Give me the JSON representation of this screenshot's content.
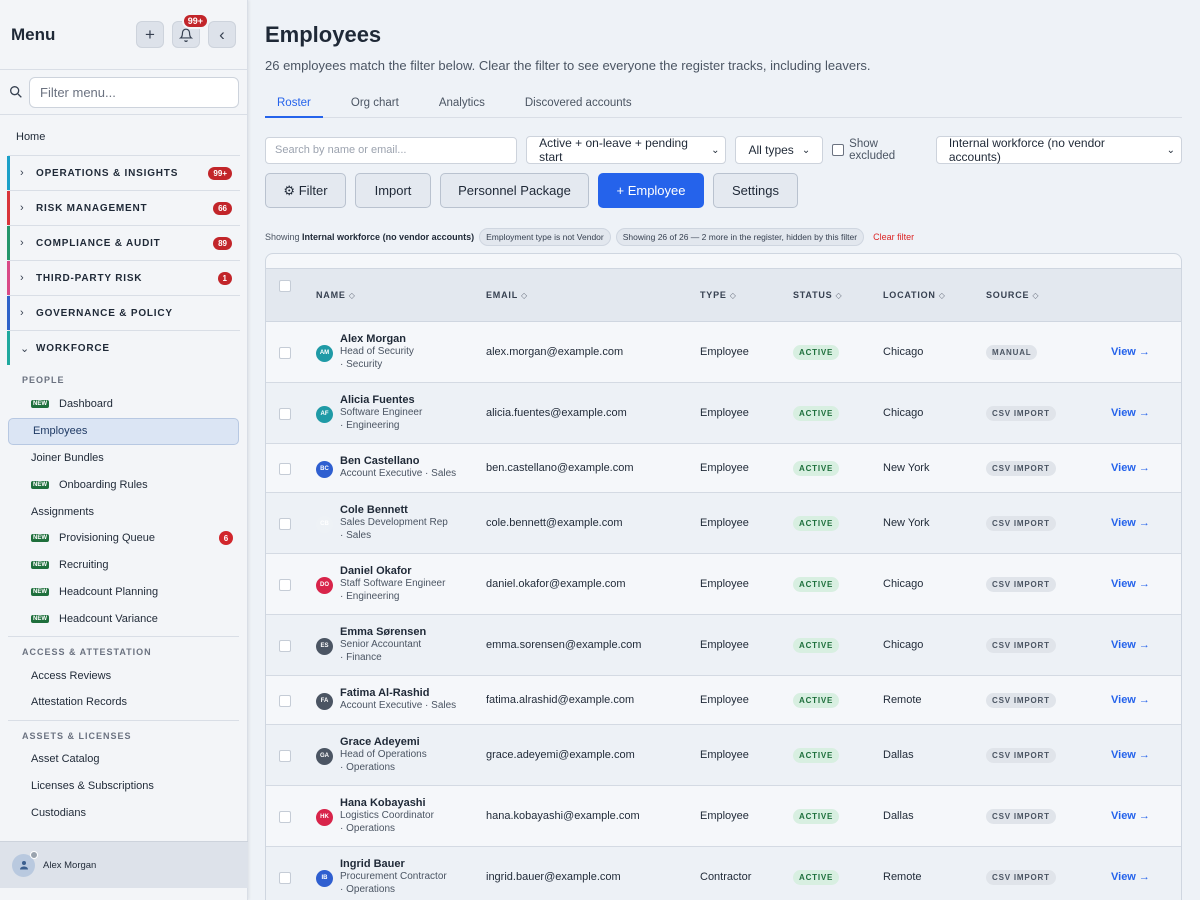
{
  "sidebar": {
    "title": "Menu",
    "notif_badge": "99+",
    "search_placeholder": "Filter menu...",
    "home": "Home",
    "groups": [
      {
        "label": "OPERATIONS & INSIGHTS",
        "count": "99+",
        "color": "#1ba0c8"
      },
      {
        "label": "RISK MANAGEMENT",
        "count": "66",
        "color": "#d9343a"
      },
      {
        "label": "COMPLIANCE & AUDIT",
        "count": "89",
        "color": "#23956b"
      },
      {
        "label": "THIRD-PARTY RISK",
        "count": "1",
        "color": "#d94a87"
      },
      {
        "label": "GOVERNANCE & POLICY",
        "count": "",
        "color": "#2f63c9"
      },
      {
        "label": "WORKFORCE",
        "count": "",
        "color": "#1fa89e"
      }
    ],
    "section_people": "PEOPLE",
    "people_items": [
      {
        "label": "Dashboard",
        "new": "NEW",
        "count": ""
      },
      {
        "label": "Employees",
        "new": "",
        "count": "",
        "active": true
      },
      {
        "label": "Joiner Bundles",
        "new": "",
        "count": ""
      },
      {
        "label": "Onboarding Rules",
        "new": "NEW",
        "count": ""
      },
      {
        "label": "Assignments",
        "new": "",
        "count": ""
      },
      {
        "label": "Provisioning Queue",
        "new": "NEW",
        "count": "6"
      },
      {
        "label": "Recruiting",
        "new": "NEW",
        "count": ""
      },
      {
        "label": "Headcount Planning",
        "new": "NEW",
        "count": ""
      },
      {
        "label": "Headcount Variance",
        "new": "NEW",
        "count": ""
      }
    ],
    "section_access": "ACCESS & ATTESTATION",
    "access_items": [
      "Access Reviews",
      "Attestation Records"
    ],
    "section_assets": "ASSETS & LICENSES",
    "assets_items": [
      "Asset Catalog",
      "Licenses & Subscriptions",
      "Custodians"
    ],
    "user_name": "Alex Morgan"
  },
  "main": {
    "title": "Employees",
    "subtitle": "26 employees match the filter below. Clear the filter to see everyone the register tracks, including leavers.",
    "tabs": [
      "Roster",
      "Org chart",
      "Analytics",
      "Discovered accounts"
    ],
    "search_placeholder": "Search by name or email...",
    "status_select": "Active + on-leave + pending start",
    "type_select": "All types",
    "show_excluded": "Show excluded",
    "scope_select": "Internal workforce (no vendor accounts)",
    "buttons": {
      "filter": "⚙ Filter",
      "import": "Import",
      "package": "Personnel Package",
      "add": "+ Employee",
      "settings": "Settings"
    },
    "showing_prefix": "Showing",
    "showing_scope": "Internal workforce (no vendor accounts)",
    "chip_type": "Employment type is not Vendor",
    "chip_count": "Showing 26 of 26 — 2 more in the register, hidden by this filter",
    "clear_filter": "Clear filter"
  },
  "table": {
    "columns": [
      "NAME",
      "EMAIL",
      "TYPE",
      "STATUS",
      "LOCATION",
      "SOURCE"
    ],
    "sort_glyph": "◇",
    "view_label": "View →",
    "rows": [
      {
        "initials": "AM",
        "color": "#1f9aa6",
        "name": "Alex Morgan",
        "title1": "Head of Security",
        "title2": "· Security",
        "email": "alex.morgan@example.com",
        "type": "Employee",
        "status": "ACTIVE",
        "location": "Chicago",
        "source": "MANUAL"
      },
      {
        "initials": "AF",
        "color": "#1f9aa6",
        "name": "Alicia Fuentes",
        "title1": "Software Engineer",
        "title2": "· Engineering",
        "email": "alicia.fuentes@example.com",
        "type": "Employee",
        "status": "ACTIVE",
        "location": "Chicago",
        "source": "CSV IMPORT"
      },
      {
        "initials": "BC",
        "color": "#2f5fd0",
        "name": "Ben Castellano",
        "title1": "Account Executive · Sales",
        "title2": "",
        "email": "ben.castellano@example.com",
        "type": "Employee",
        "status": "ACTIVE",
        "location": "New York",
        "source": "CSV IMPORT"
      },
      {
        "initials": "CB",
        "color": "#eef2f6",
        "name": "Cole Bennett",
        "title1": "Sales Development Rep",
        "title2": "· Sales",
        "email": "cole.bennett@example.com",
        "type": "Employee",
        "status": "ACTIVE",
        "location": "New York",
        "source": "CSV IMPORT"
      },
      {
        "initials": "DO",
        "color": "#d8244a",
        "name": "Daniel Okafor",
        "title1": "Staff Software Engineer",
        "title2": "· Engineering",
        "email": "daniel.okafor@example.com",
        "type": "Employee",
        "status": "ACTIVE",
        "location": "Chicago",
        "source": "CSV IMPORT"
      },
      {
        "initials": "ES",
        "color": "#4b5563",
        "name": "Emma Sørensen",
        "title1": "Senior Accountant",
        "title2": "· Finance",
        "email": "emma.sorensen@example.com",
        "type": "Employee",
        "status": "ACTIVE",
        "location": "Chicago",
        "source": "CSV IMPORT"
      },
      {
        "initials": "FA",
        "color": "#4b5563",
        "name": "Fatima Al-Rashid",
        "title1": "Account Executive · Sales",
        "title2": "",
        "email": "fatima.alrashid@example.com",
        "type": "Employee",
        "status": "ACTIVE",
        "location": "Remote",
        "source": "CSV IMPORT"
      },
      {
        "initials": "GA",
        "color": "#4b5563",
        "name": "Grace Adeyemi",
        "title1": "Head of Operations",
        "title2": "· Operations",
        "email": "grace.adeyemi@example.com",
        "type": "Employee",
        "status": "ACTIVE",
        "location": "Dallas",
        "source": "CSV IMPORT"
      },
      {
        "initials": "HK",
        "color": "#d8244a",
        "name": "Hana Kobayashi",
        "title1": "Logistics Coordinator",
        "title2": "· Operations",
        "email": "hana.kobayashi@example.com",
        "type": "Employee",
        "status": "ACTIVE",
        "location": "Dallas",
        "source": "CSV IMPORT"
      },
      {
        "initials": "IB",
        "color": "#2f5fd0",
        "name": "Ingrid Bauer",
        "title1": "Procurement Contractor",
        "title2": "· Operations",
        "email": "ingrid.bauer@example.com",
        "type": "Contractor",
        "status": "ACTIVE",
        "location": "Remote",
        "source": "CSV IMPORT"
      }
    ]
  }
}
